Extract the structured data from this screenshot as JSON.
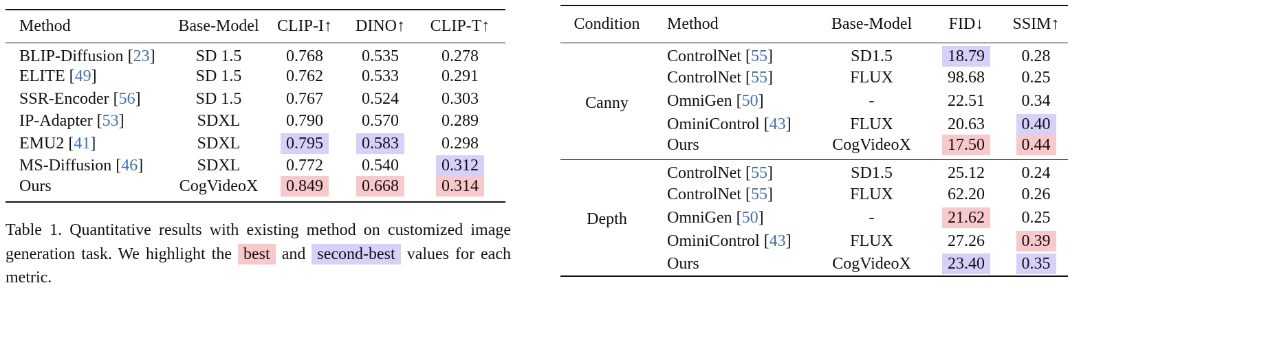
{
  "colors": {
    "best": "#f8c8cb",
    "second": "#d5d1fa",
    "citation": "#3a6fbf"
  },
  "table1": {
    "headers": [
      "Method",
      "Base-Model",
      "CLIP-I↑",
      "DINO↑",
      "CLIP-T↑"
    ],
    "rows": [
      {
        "method": "BLIP-Diffusion",
        "cite": "23",
        "base": "SD 1.5",
        "vals": [
          "0.768",
          "0.535",
          "0.278"
        ],
        "hl": [
          "",
          "",
          ""
        ]
      },
      {
        "method": "ELITE",
        "cite": "49",
        "base": "SD 1.5",
        "vals": [
          "0.762",
          "0.533",
          "0.291"
        ],
        "hl": [
          "",
          "",
          ""
        ]
      },
      {
        "method": "SSR-Encoder",
        "cite": "56",
        "base": "SD 1.5",
        "vals": [
          "0.767",
          "0.524",
          "0.303"
        ],
        "hl": [
          "",
          "",
          ""
        ]
      },
      {
        "method": "IP-Adapter",
        "cite": "53",
        "base": "SDXL",
        "vals": [
          "0.790",
          "0.570",
          "0.289"
        ],
        "hl": [
          "",
          "",
          ""
        ]
      },
      {
        "method": "EMU2",
        "cite": "41",
        "base": "SDXL",
        "vals": [
          "0.795",
          "0.583",
          "0.298"
        ],
        "hl": [
          "second",
          "second",
          ""
        ]
      },
      {
        "method": "MS-Diffusion",
        "cite": "46",
        "base": "SDXL",
        "vals": [
          "0.772",
          "0.540",
          "0.312"
        ],
        "hl": [
          "",
          "",
          "second"
        ]
      },
      {
        "method": "Ours",
        "cite": "",
        "base": "CogVideoX",
        "vals": [
          "0.849",
          "0.668",
          "0.314"
        ],
        "hl": [
          "best",
          "best",
          "best"
        ]
      }
    ]
  },
  "caption": {
    "part1": "Table 1. Quantitative results with existing method on customized image generation task. We highlight the ",
    "best": "best",
    "part2": " and ",
    "second": "second-best",
    "part3": " values for each metric."
  },
  "table2": {
    "headers": [
      "Condition",
      "Method",
      "Base-Model",
      "FID↓",
      "SSIM↑"
    ],
    "groups": [
      {
        "condition": "Canny",
        "rows": [
          {
            "method": "ControlNet",
            "cite": "55",
            "base": "SD1.5",
            "vals": [
              "18.79",
              "0.28"
            ],
            "hl": [
              "second",
              ""
            ]
          },
          {
            "method": "ControlNet",
            "cite": "55",
            "base": "FLUX",
            "vals": [
              "98.68",
              "0.25"
            ],
            "hl": [
              "",
              ""
            ]
          },
          {
            "method": "OmniGen",
            "cite": "50",
            "base": "-",
            "vals": [
              "22.51",
              "0.34"
            ],
            "hl": [
              "",
              ""
            ]
          },
          {
            "method": "OminiControl",
            "cite": "43",
            "base": "FLUX",
            "vals": [
              "20.63",
              "0.40"
            ],
            "hl": [
              "",
              "second"
            ]
          },
          {
            "method": "Ours",
            "cite": "",
            "base": "CogVideoX",
            "vals": [
              "17.50",
              "0.44"
            ],
            "hl": [
              "best",
              "best"
            ]
          }
        ]
      },
      {
        "condition": "Depth",
        "rows": [
          {
            "method": "ControlNet",
            "cite": "55",
            "base": "SD1.5",
            "vals": [
              "25.12",
              "0.24"
            ],
            "hl": [
              "",
              ""
            ]
          },
          {
            "method": "ControlNet",
            "cite": "55",
            "base": "FLUX",
            "vals": [
              "62.20",
              "0.26"
            ],
            "hl": [
              "",
              ""
            ]
          },
          {
            "method": "OmniGen",
            "cite": "50",
            "base": "-",
            "vals": [
              "21.62",
              "0.25"
            ],
            "hl": [
              "best",
              ""
            ]
          },
          {
            "method": "OminiControl",
            "cite": "43",
            "base": "FLUX",
            "vals": [
              "27.26",
              "0.39"
            ],
            "hl": [
              "",
              "best"
            ]
          },
          {
            "method": "Ours",
            "cite": "",
            "base": "CogVideoX",
            "vals": [
              "23.40",
              "0.35"
            ],
            "hl": [
              "second",
              "second"
            ]
          }
        ]
      }
    ]
  }
}
